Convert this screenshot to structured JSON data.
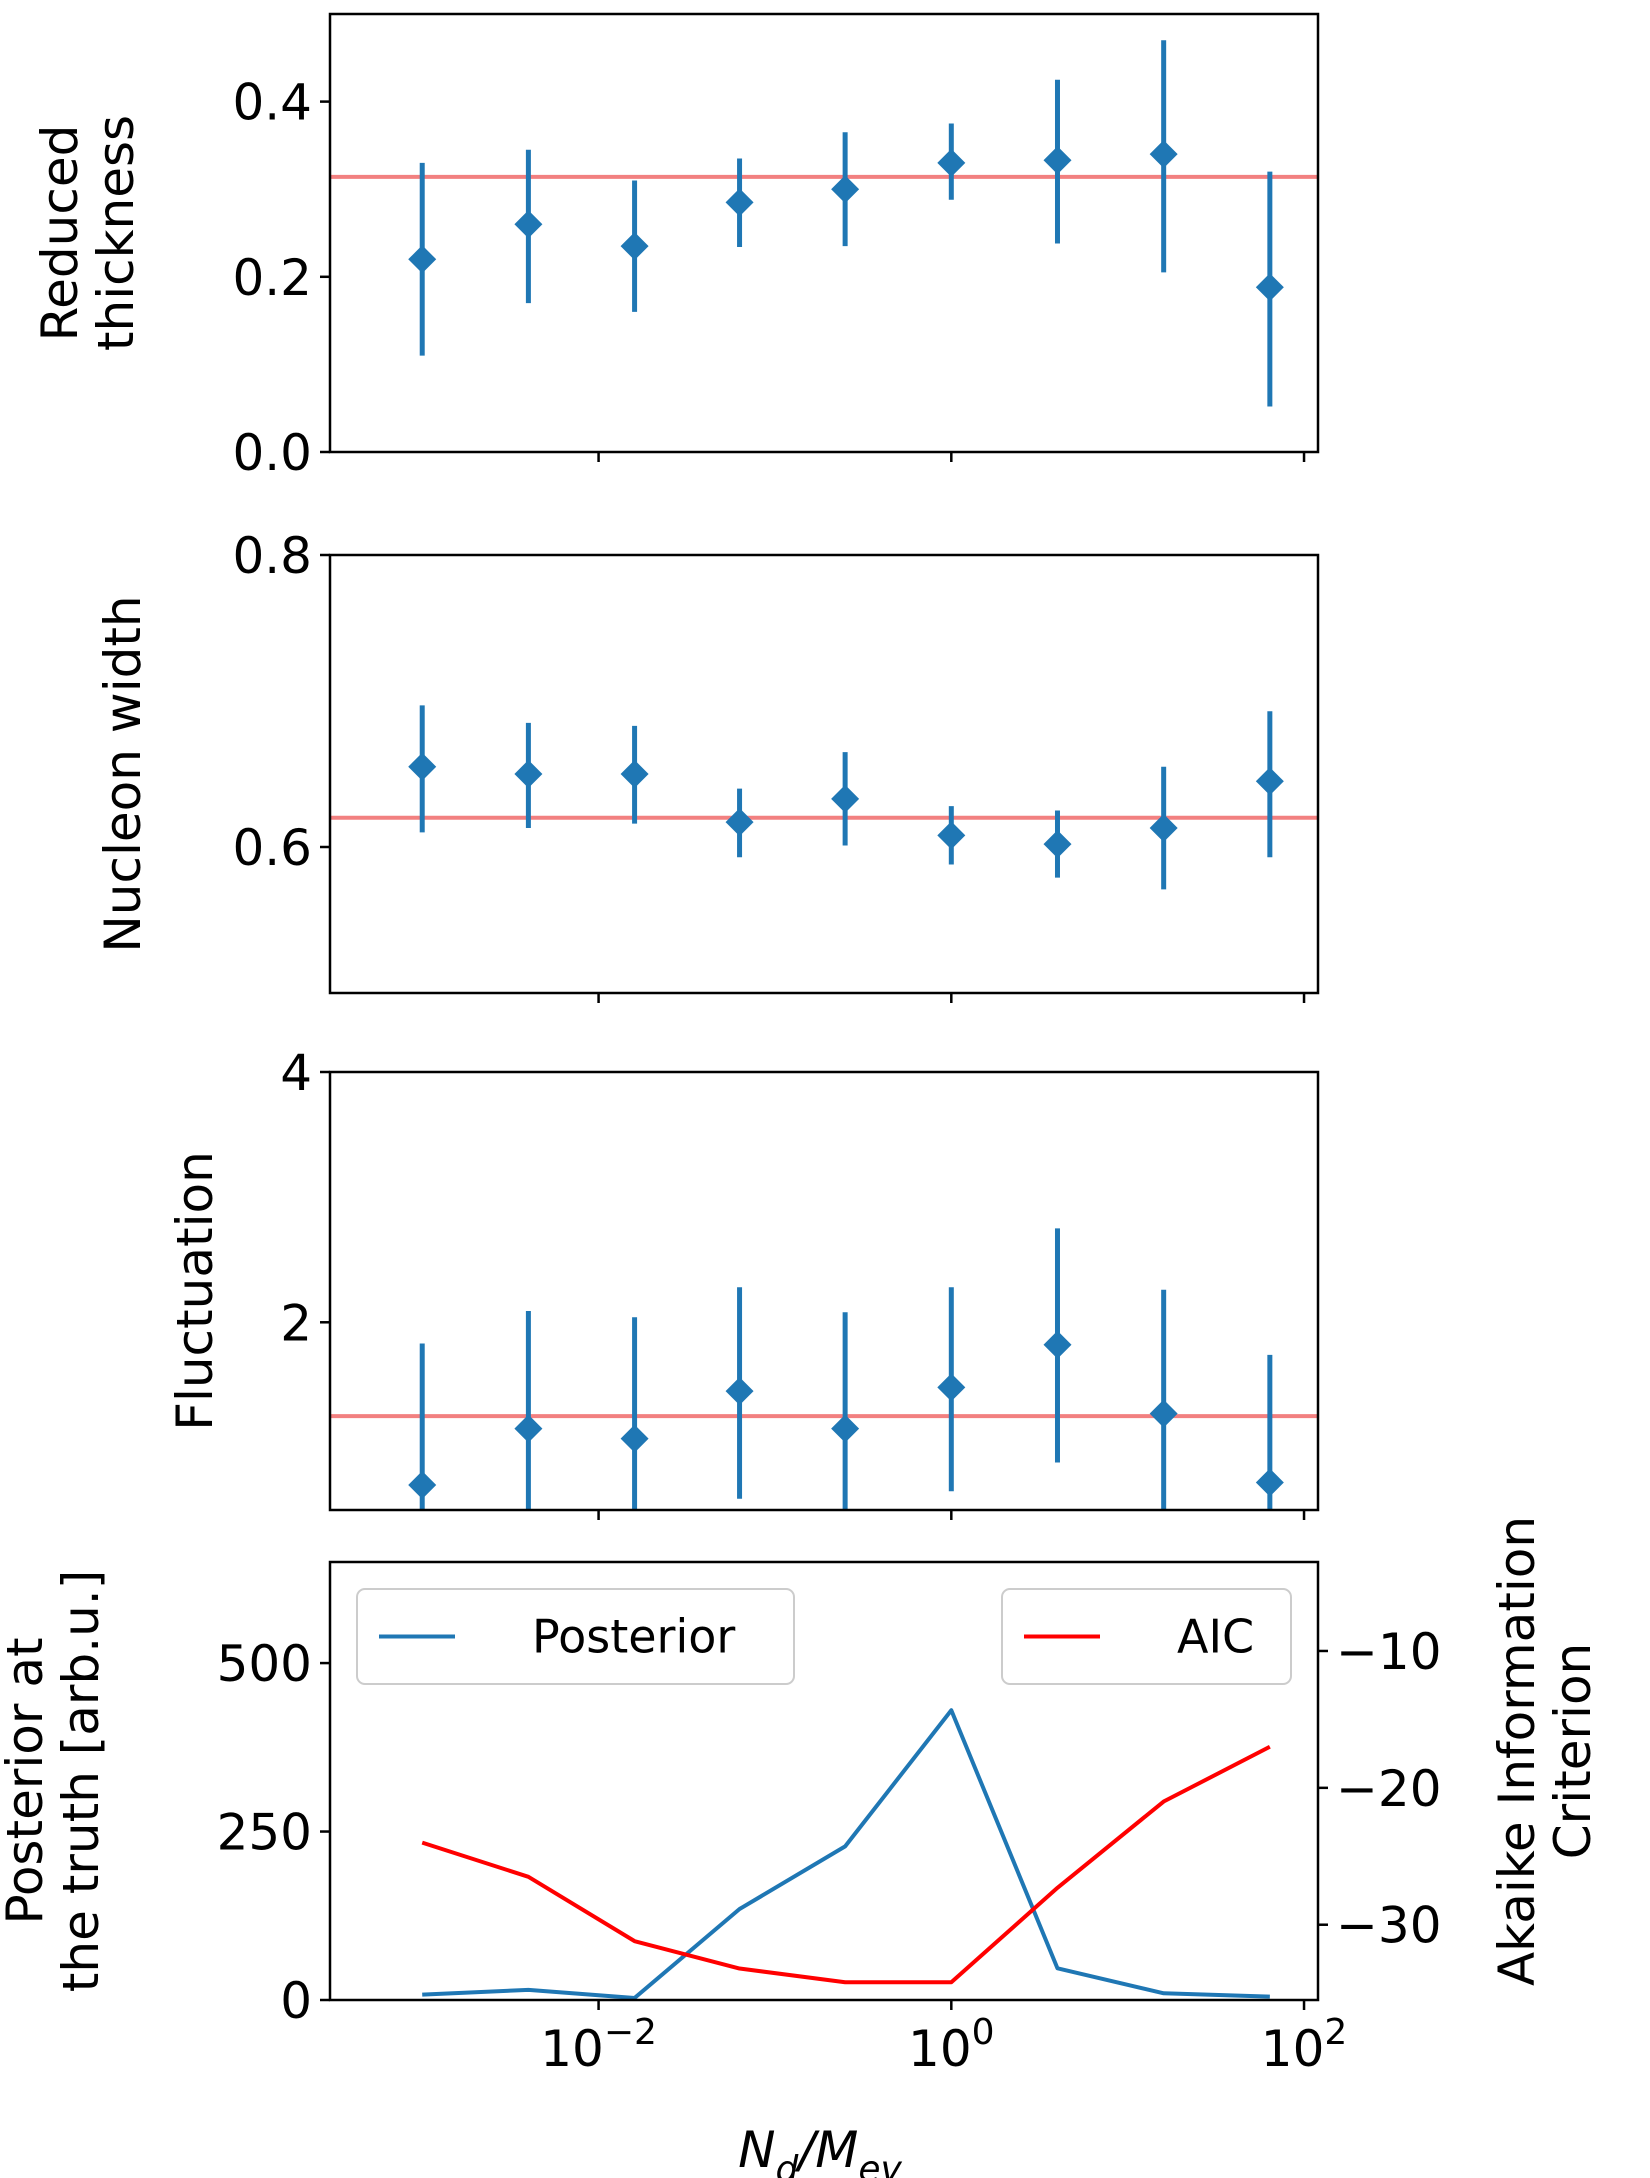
{
  "figure": {
    "xlabel_main": "N",
    "xlabel_sub1": "d",
    "xlabel_slash": "/M",
    "xlabel_sub2": "ev"
  },
  "chart_data": [
    {
      "type": "scatter",
      "name": "reduced-thickness",
      "ylabel": [
        "Reduced",
        "thickness"
      ],
      "xscale": "log",
      "xlim": [
        0.0003,
        120
      ],
      "ylim": [
        0.0,
        0.5
      ],
      "yticks": [
        0.0,
        0.2,
        0.4
      ],
      "ytick_labels": [
        "0.0",
        "0.2",
        "0.4"
      ],
      "x": [
        0.001,
        0.004,
        0.016,
        0.063,
        0.25,
        1,
        4,
        16,
        64
      ],
      "y": [
        0.22,
        0.26,
        0.235,
        0.285,
        0.3,
        0.33,
        0.333,
        0.34,
        0.188
      ],
      "yerr_low": [
        0.11,
        0.17,
        0.16,
        0.234,
        0.235,
        0.288,
        0.238,
        0.205,
        0.052
      ],
      "yerr_high": [
        0.33,
        0.345,
        0.31,
        0.335,
        0.365,
        0.375,
        0.425,
        0.47,
        0.32
      ],
      "truth": 0.314,
      "marker_color": "#1f77b4",
      "truth_color": "#f28080"
    },
    {
      "type": "scatter",
      "name": "nucleon-width",
      "ylabel": [
        "Nucleon width"
      ],
      "xscale": "log",
      "xlim": [
        0.0003,
        120
      ],
      "ylim": [
        0.5,
        0.8
      ],
      "yticks": [
        0.6,
        0.8
      ],
      "ytick_labels": [
        "0.6",
        "0.8"
      ],
      "x": [
        0.001,
        0.004,
        0.016,
        0.063,
        0.25,
        1,
        4,
        16,
        64
      ],
      "y": [
        0.655,
        0.65,
        0.65,
        0.617,
        0.633,
        0.608,
        0.602,
        0.613,
        0.645
      ],
      "yerr_low": [
        0.61,
        0.613,
        0.616,
        0.593,
        0.601,
        0.588,
        0.579,
        0.571,
        0.593
      ],
      "yerr_high": [
        0.697,
        0.685,
        0.683,
        0.64,
        0.665,
        0.628,
        0.625,
        0.655,
        0.693
      ],
      "truth": 0.62,
      "marker_color": "#1f77b4",
      "truth_color": "#f28080"
    },
    {
      "type": "scatter",
      "name": "fluctuation",
      "ylabel": [
        "Fluctuation"
      ],
      "xscale": "log",
      "xlim": [
        0.0003,
        120
      ],
      "ylim": [
        0.5,
        4.0
      ],
      "yticks": [
        2,
        4
      ],
      "ytick_labels": [
        "2",
        "4"
      ],
      "x": [
        0.001,
        0.004,
        0.016,
        0.063,
        0.25,
        1,
        4,
        16,
        64
      ],
      "y": [
        0.7,
        1.15,
        1.07,
        1.45,
        1.15,
        1.48,
        1.82,
        1.27,
        0.72
      ],
      "yerr_low": [
        0.5,
        0.5,
        0.5,
        0.59,
        0.5,
        0.65,
        0.88,
        0.5,
        0.5
      ],
      "yerr_high": [
        1.83,
        2.09,
        2.04,
        2.28,
        2.08,
        2.28,
        2.75,
        2.26,
        1.74
      ],
      "truth": 1.25,
      "marker_color": "#1f77b4",
      "truth_color": "#f28080"
    },
    {
      "type": "line",
      "name": "posterior-aic",
      "ylabel": [
        "Posterior at",
        "the truth [arb.u.]"
      ],
      "y2label": [
        "Akaike Information",
        "Criterion"
      ],
      "xscale": "log",
      "xlim": [
        0.0003,
        120
      ],
      "ylim": [
        0,
        650
      ],
      "yticks": [
        0,
        250,
        500
      ],
      "ytick_labels": [
        "0",
        "250",
        "500"
      ],
      "y2lim": [
        -35.5,
        -3.5
      ],
      "y2ticks": [
        -30,
        -20,
        -10
      ],
      "y2tick_labels": [
        "−30",
        "−20",
        "−10"
      ],
      "xticks": [
        0.01,
        1,
        100
      ],
      "xtick_labels": [
        {
          "base": "10",
          "exp": "−2"
        },
        {
          "base": "10",
          "exp": "0"
        },
        {
          "base": "10",
          "exp": "2"
        }
      ],
      "x": [
        0.001,
        0.004,
        0.016,
        0.063,
        0.25,
        1,
        4,
        16,
        64
      ],
      "series": [
        {
          "name": "Posterior",
          "axis": "left",
          "color": "#1f77b4",
          "values": [
            8,
            15,
            3,
            135,
            228,
            430,
            47,
            10,
            5
          ]
        },
        {
          "name": "AIC",
          "axis": "right",
          "color": "#ff0000",
          "values": [
            -24,
            -26.5,
            -31.2,
            -33.2,
            -34.2,
            -34.2,
            -27.3,
            -21,
            -17
          ]
        }
      ],
      "legend": [
        {
          "label": "Posterior",
          "color": "#1f77b4",
          "placement": "top-left"
        },
        {
          "label": "AIC",
          "color": "#ff0000",
          "placement": "top-right"
        }
      ]
    }
  ]
}
